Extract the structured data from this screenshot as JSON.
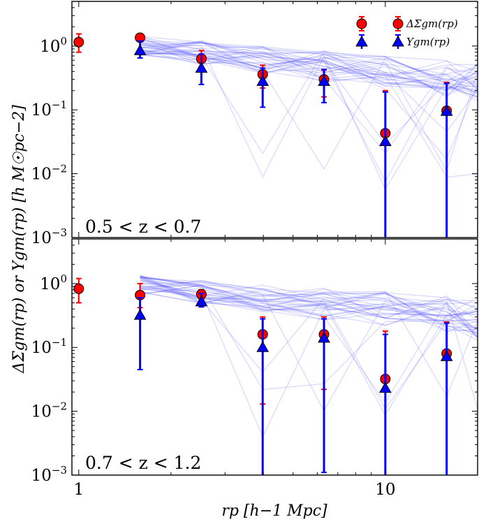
{
  "chart_data": [
    {
      "type": "scatter",
      "panel": "top",
      "label": "0.5 < z < 0.7",
      "xscale": "log",
      "yscale": "log",
      "xlim": [
        0.95,
        20
      ],
      "ylim": [
        0.001,
        5
      ],
      "legend": {
        "position": "top-right",
        "entries": [
          {
            "symbol": "circle",
            "color": "#ff0000",
            "label": "ΔΣgm(rp)"
          },
          {
            "symbol": "triangle",
            "color": "#0000ff",
            "label": "Υgm(rp)"
          }
        ]
      },
      "series": [
        {
          "name": "ΔΣgm(rp)",
          "marker": "circle",
          "color": "#ff0000",
          "x": [
            1.0,
            1.585,
            2.512,
            3.981,
            6.31,
            10.0,
            15.85
          ],
          "y": [
            1.15,
            1.35,
            0.63,
            0.36,
            0.3,
            0.043,
            0.097
          ],
          "yerr_low": [
            0.8,
            1.2,
            0.45,
            0.22,
            0.16,
            0.0005,
            0.0005
          ],
          "yerr_high": [
            1.55,
            1.55,
            0.85,
            0.5,
            0.42,
            0.2,
            0.27
          ]
        },
        {
          "name": "Υgm(rp)",
          "marker": "triangle",
          "color": "#0000ff",
          "x": [
            1.585,
            2.512,
            3.981,
            6.31,
            10.0,
            15.85
          ],
          "y": [
            0.85,
            0.45,
            0.28,
            0.28,
            0.032,
            0.095
          ],
          "yerr_low": [
            0.65,
            0.25,
            0.11,
            0.13,
            0.0005,
            0.0005
          ],
          "yerr_high": [
            1.2,
            0.75,
            0.45,
            0.43,
            0.19,
            0.26
          ]
        }
      ],
      "mock_lines": {
        "count": 36,
        "color": "#3333ff",
        "x": [
          1.585,
          2.512,
          3.981,
          6.31,
          10.0,
          15.85,
          20.0
        ],
        "trend": [
          1.0,
          0.78,
          0.6,
          0.48,
          0.4,
          0.32,
          0.28
        ]
      }
    },
    {
      "type": "scatter",
      "panel": "bottom",
      "label": "0.7 < z < 1.2",
      "xscale": "log",
      "yscale": "log",
      "xlim": [
        0.95,
        20
      ],
      "ylim": [
        0.001,
        5
      ],
      "series": [
        {
          "name": "ΔΣgm(rp)",
          "marker": "circle",
          "color": "#ff0000",
          "x": [
            1.0,
            1.585,
            2.512,
            3.981,
            6.31,
            10.0,
            15.85
          ],
          "y": [
            0.83,
            0.66,
            0.68,
            0.16,
            0.16,
            0.032,
            0.08
          ],
          "yerr_low": [
            0.5,
            0.42,
            0.55,
            0.013,
            0.022,
            0.0005,
            0.0005
          ],
          "yerr_high": [
            1.2,
            1.0,
            0.8,
            0.3,
            0.3,
            0.18,
            0.25
          ]
        },
        {
          "name": "Υgm(rp)",
          "marker": "triangle",
          "color": "#0000ff",
          "x": [
            1.585,
            2.512,
            3.981,
            6.31,
            10.0,
            15.85
          ],
          "y": [
            0.32,
            0.52,
            0.1,
            0.14,
            0.023,
            0.072
          ],
          "yerr_low": [
            0.045,
            0.43,
            0.0005,
            0.0011,
            0.0005,
            0.0005
          ],
          "yerr_high": [
            0.6,
            0.7,
            0.28,
            0.28,
            0.16,
            0.24
          ]
        }
      ],
      "mock_lines": {
        "count": 36,
        "color": "#3333ff",
        "x": [
          1.585,
          2.512,
          3.981,
          6.31,
          10.0,
          15.85,
          20.0
        ],
        "trend": [
          0.95,
          0.75,
          0.6,
          0.48,
          0.4,
          0.32,
          0.28
        ]
      }
    }
  ],
  "axes": {
    "xlabel": "rp   [h−1 Mpc]",
    "ylabel": "ΔΣgm(rp) or Υgm(rp)   [h M☉pc−2]",
    "x_ticks": [
      {
        "value": 1,
        "label": "1"
      },
      {
        "value": 10,
        "label": "10"
      }
    ],
    "y_ticks": [
      {
        "value": 0.001,
        "base": "10",
        "exp": "−3"
      },
      {
        "value": 0.01,
        "base": "10",
        "exp": "−2"
      },
      {
        "value": 0.1,
        "base": "10",
        "exp": "−1"
      },
      {
        "value": 1,
        "base": "10",
        "exp": "0"
      }
    ]
  }
}
